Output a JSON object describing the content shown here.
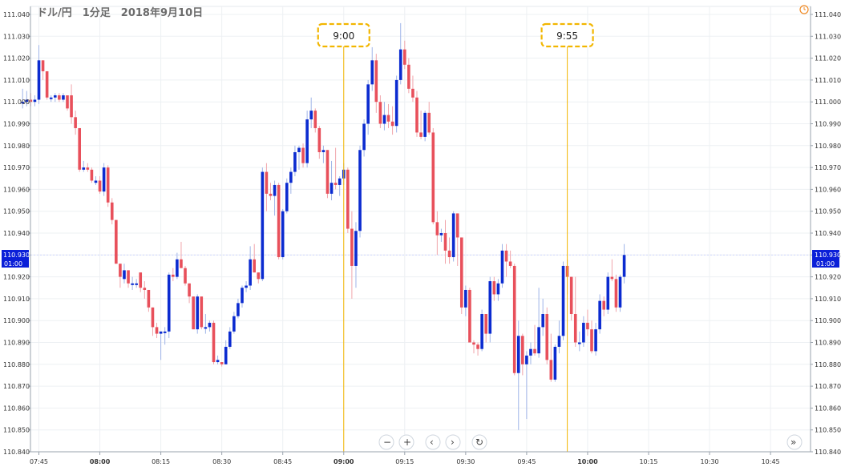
{
  "title": "ドル/円　1分足　2018年9月10日",
  "chart_data": {
    "type": "candlestick",
    "title": "ドル/円　1分足　2018年9月10日",
    "ylim": [
      110.84,
      111.04
    ],
    "y_ticks": [
      "111.040",
      "111.030",
      "111.020",
      "111.010",
      "111.000",
      "110.990",
      "110.980",
      "110.970",
      "110.960",
      "110.950",
      "110.940",
      "110.930",
      "110.920",
      "110.910",
      "110.900",
      "110.890",
      "110.880",
      "110.870",
      "110.860",
      "110.850",
      "110.840"
    ],
    "x_ticks": [
      {
        "label": "07:45",
        "minute": 465,
        "bold": false
      },
      {
        "label": "08:00",
        "minute": 480,
        "bold": true
      },
      {
        "label": "08:15",
        "minute": 495,
        "bold": false
      },
      {
        "label": "08:30",
        "minute": 510,
        "bold": false
      },
      {
        "label": "08:45",
        "minute": 525,
        "bold": false
      },
      {
        "label": "09:00",
        "minute": 540,
        "bold": true
      },
      {
        "label": "09:15",
        "minute": 555,
        "bold": false
      },
      {
        "label": "09:30",
        "minute": 570,
        "bold": false
      },
      {
        "label": "09:45",
        "minute": 585,
        "bold": false
      },
      {
        "label": "10:00",
        "minute": 600,
        "bold": true
      },
      {
        "label": "10:15",
        "minute": 615,
        "bold": false
      },
      {
        "label": "10:30",
        "minute": 630,
        "bold": false
      },
      {
        "label": "10:45",
        "minute": 645,
        "bold": false
      }
    ],
    "current_price": {
      "price": "110.930",
      "time": "01:00",
      "value": 110.93
    },
    "markers": [
      {
        "label": "9:00",
        "minute": 540
      },
      {
        "label": "9:55",
        "minute": 595
      }
    ],
    "up_color": "#0b2bd0",
    "down_color": "#e8505b",
    "marker_color": "#f2b600",
    "candles": [
      {
        "o": 111.0,
        "h": 111.006,
        "l": 110.997,
        "c": 111.0
      },
      {
        "o": 111.0,
        "h": 111.005,
        "l": 110.998,
        "c": 111.001
      },
      {
        "o": 111.001,
        "h": 111.004,
        "l": 110.998,
        "c": 111.0
      },
      {
        "o": 111.0,
        "h": 111.003,
        "l": 110.998,
        "c": 111.001
      },
      {
        "o": 111.001,
        "h": 111.026,
        "l": 110.999,
        "c": 111.019
      },
      {
        "o": 111.019,
        "h": 111.019,
        "l": 111.01,
        "c": 111.014
      },
      {
        "o": 111.014,
        "h": 111.014,
        "l": 111.001,
        "c": 111.002
      },
      {
        "o": 111.002,
        "h": 111.003,
        "l": 111.0,
        "c": 111.002
      },
      {
        "o": 111.002,
        "h": 111.004,
        "l": 111.0,
        "c": 111.003
      },
      {
        "o": 111.003,
        "h": 111.004,
        "l": 111.0,
        "c": 111.001
      },
      {
        "o": 111.001,
        "h": 111.004,
        "l": 111.0,
        "c": 111.003
      },
      {
        "o": 111.003,
        "h": 111.003,
        "l": 110.996,
        "c": 110.997
      },
      {
        "o": 111.003,
        "h": 111.008,
        "l": 110.99,
        "c": 110.993
      },
      {
        "o": 110.993,
        "h": 110.996,
        "l": 110.985,
        "c": 110.988
      },
      {
        "o": 110.988,
        "h": 110.988,
        "l": 110.968,
        "c": 110.969
      },
      {
        "o": 110.969,
        "h": 110.973,
        "l": 110.968,
        "c": 110.97
      },
      {
        "o": 110.97,
        "h": 110.972,
        "l": 110.968,
        "c": 110.969
      },
      {
        "o": 110.969,
        "h": 110.97,
        "l": 110.963,
        "c": 110.964
      },
      {
        "o": 110.963,
        "h": 110.966,
        "l": 110.962,
        "c": 110.964
      },
      {
        "o": 110.964,
        "h": 110.966,
        "l": 110.958,
        "c": 110.959
      },
      {
        "o": 110.959,
        "h": 110.972,
        "l": 110.957,
        "c": 110.97
      },
      {
        "o": 110.97,
        "h": 110.971,
        "l": 110.952,
        "c": 110.954
      },
      {
        "o": 110.954,
        "h": 110.956,
        "l": 110.944,
        "c": 110.946
      },
      {
        "o": 110.946,
        "h": 110.946,
        "l": 110.926,
        "c": 110.926
      },
      {
        "o": 110.926,
        "h": 110.926,
        "l": 110.915,
        "c": 110.92
      },
      {
        "o": 110.919,
        "h": 110.926,
        "l": 110.917,
        "c": 110.923
      },
      {
        "o": 110.923,
        "h": 110.923,
        "l": 110.915,
        "c": 110.917
      },
      {
        "o": 110.917,
        "h": 110.92,
        "l": 110.914,
        "c": 110.917
      },
      {
        "o": 110.917,
        "h": 110.919,
        "l": 110.915,
        "c": 110.917
      },
      {
        "o": 110.922,
        "h": 110.922,
        "l": 110.913,
        "c": 110.915
      },
      {
        "o": 110.915,
        "h": 110.918,
        "l": 110.91,
        "c": 110.914
      },
      {
        "o": 110.914,
        "h": 110.914,
        "l": 110.904,
        "c": 110.906
      },
      {
        "o": 110.906,
        "h": 110.906,
        "l": 110.893,
        "c": 110.897
      },
      {
        "o": 110.897,
        "h": 110.899,
        "l": 110.892,
        "c": 110.894
      },
      {
        "o": 110.894,
        "h": 110.895,
        "l": 110.882,
        "c": 110.895
      },
      {
        "o": 110.895,
        "h": 110.897,
        "l": 110.889,
        "c": 110.895
      },
      {
        "o": 110.895,
        "h": 110.922,
        "l": 110.892,
        "c": 110.921
      },
      {
        "o": 110.921,
        "h": 110.924,
        "l": 110.918,
        "c": 110.92
      },
      {
        "o": 110.92,
        "h": 110.931,
        "l": 110.919,
        "c": 110.928
      },
      {
        "o": 110.928,
        "h": 110.936,
        "l": 110.926,
        "c": 110.924
      },
      {
        "o": 110.924,
        "h": 110.925,
        "l": 110.916,
        "c": 110.917
      },
      {
        "o": 110.917,
        "h": 110.917,
        "l": 110.908,
        "c": 110.911
      },
      {
        "o": 110.911,
        "h": 110.911,
        "l": 110.896,
        "c": 110.896
      },
      {
        "o": 110.896,
        "h": 110.912,
        "l": 110.894,
        "c": 110.911
      },
      {
        "o": 110.911,
        "h": 110.911,
        "l": 110.896,
        "c": 110.897
      },
      {
        "o": 110.897,
        "h": 110.903,
        "l": 110.894,
        "c": 110.897
      },
      {
        "o": 110.897,
        "h": 110.9,
        "l": 110.895,
        "c": 110.899
      },
      {
        "o": 110.899,
        "h": 110.9,
        "l": 110.88,
        "c": 110.881
      },
      {
        "o": 110.881,
        "h": 110.884,
        "l": 110.88,
        "c": 110.882
      },
      {
        "o": 110.881,
        "h": 110.881,
        "l": 110.879,
        "c": 110.88
      },
      {
        "o": 110.88,
        "h": 110.891,
        "l": 110.88,
        "c": 110.888
      },
      {
        "o": 110.888,
        "h": 110.897,
        "l": 110.887,
        "c": 110.895
      },
      {
        "o": 110.895,
        "h": 110.904,
        "l": 110.894,
        "c": 110.902
      },
      {
        "o": 110.902,
        "h": 110.91,
        "l": 110.901,
        "c": 110.908
      },
      {
        "o": 110.908,
        "h": 110.916,
        "l": 110.906,
        "c": 110.915
      },
      {
        "o": 110.915,
        "h": 110.918,
        "l": 110.913,
        "c": 110.916
      },
      {
        "o": 110.916,
        "h": 110.934,
        "l": 110.914,
        "c": 110.928
      },
      {
        "o": 110.928,
        "h": 110.935,
        "l": 110.922,
        "c": 110.922
      },
      {
        "o": 110.922,
        "h": 110.922,
        "l": 110.917,
        "c": 110.919
      },
      {
        "o": 110.919,
        "h": 110.97,
        "l": 110.918,
        "c": 110.968
      },
      {
        "o": 110.968,
        "h": 110.972,
        "l": 110.95,
        "c": 110.958
      },
      {
        "o": 110.958,
        "h": 110.963,
        "l": 110.955,
        "c": 110.957
      },
      {
        "o": 110.957,
        "h": 110.964,
        "l": 110.948,
        "c": 110.962
      },
      {
        "o": 110.962,
        "h": 110.963,
        "l": 110.928,
        "c": 110.929
      },
      {
        "o": 110.929,
        "h": 110.951,
        "l": 110.928,
        "c": 110.95
      },
      {
        "o": 110.95,
        "h": 110.965,
        "l": 110.949,
        "c": 110.963
      },
      {
        "o": 110.963,
        "h": 110.97,
        "l": 110.958,
        "c": 110.968
      },
      {
        "o": 110.968,
        "h": 110.98,
        "l": 110.966,
        "c": 110.977
      },
      {
        "o": 110.977,
        "h": 110.98,
        "l": 110.969,
        "c": 110.979
      },
      {
        "o": 110.979,
        "h": 110.981,
        "l": 110.97,
        "c": 110.972
      },
      {
        "o": 110.972,
        "h": 110.996,
        "l": 110.97,
        "c": 110.992
      },
      {
        "o": 110.992,
        "h": 111.002,
        "l": 110.988,
        "c": 110.996
      },
      {
        "o": 110.996,
        "h": 110.997,
        "l": 110.986,
        "c": 110.988
      },
      {
        "o": 110.988,
        "h": 110.989,
        "l": 110.974,
        "c": 110.977
      },
      {
        "o": 110.977,
        "h": 110.98,
        "l": 110.972,
        "c": 110.978
      },
      {
        "o": 110.978,
        "h": 110.978,
        "l": 110.956,
        "c": 110.958
      },
      {
        "o": 110.958,
        "h": 110.973,
        "l": 110.955,
        "c": 110.963
      },
      {
        "o": 110.963,
        "h": 110.979,
        "l": 110.96,
        "c": 110.962
      },
      {
        "o": 110.962,
        "h": 110.966,
        "l": 110.957,
        "c": 110.965
      },
      {
        "o": 110.965,
        "h": 110.972,
        "l": 110.962,
        "c": 110.969
      },
      {
        "o": 110.969,
        "h": 110.97,
        "l": 110.94,
        "c": 110.942
      },
      {
        "o": 110.942,
        "h": 110.95,
        "l": 110.91,
        "c": 110.925
      },
      {
        "o": 110.925,
        "h": 110.945,
        "l": 110.915,
        "c": 110.941
      },
      {
        "o": 110.941,
        "h": 110.98,
        "l": 110.938,
        "c": 110.978
      },
      {
        "o": 110.978,
        "h": 110.992,
        "l": 110.975,
        "c": 110.99
      },
      {
        "o": 110.99,
        "h": 111.01,
        "l": 110.985,
        "c": 111.008
      },
      {
        "o": 111.008,
        "h": 111.025,
        "l": 111.005,
        "c": 111.019
      },
      {
        "o": 111.019,
        "h": 111.022,
        "l": 110.995,
        "c": 111.0
      },
      {
        "o": 111.0,
        "h": 111.003,
        "l": 110.988,
        "c": 110.99
      },
      {
        "o": 110.99,
        "h": 111.0,
        "l": 110.987,
        "c": 110.994
      },
      {
        "o": 110.994,
        "h": 110.999,
        "l": 110.988,
        "c": 110.991
      },
      {
        "o": 110.991,
        "h": 110.998,
        "l": 110.985,
        "c": 110.989
      },
      {
        "o": 110.989,
        "h": 111.012,
        "l": 110.986,
        "c": 111.01
      },
      {
        "o": 111.01,
        "h": 111.036,
        "l": 111.008,
        "c": 111.024
      },
      {
        "o": 111.024,
        "h": 111.028,
        "l": 111.015,
        "c": 111.017
      },
      {
        "o": 111.017,
        "h": 111.02,
        "l": 111.004,
        "c": 111.006
      },
      {
        "o": 111.006,
        "h": 111.012,
        "l": 111.0,
        "c": 111.002
      },
      {
        "o": 111.002,
        "h": 111.005,
        "l": 110.984,
        "c": 110.986
      },
      {
        "o": 110.986,
        "h": 110.996,
        "l": 110.983,
        "c": 110.984
      },
      {
        "o": 110.984,
        "h": 110.996,
        "l": 110.982,
        "c": 110.995
      },
      {
        "o": 110.995,
        "h": 111.0,
        "l": 110.985,
        "c": 110.986
      },
      {
        "o": 110.986,
        "h": 110.988,
        "l": 110.944,
        "c": 110.945
      },
      {
        "o": 110.945,
        "h": 110.95,
        "l": 110.93,
        "c": 110.939
      },
      {
        "o": 110.939,
        "h": 110.942,
        "l": 110.936,
        "c": 110.94
      },
      {
        "o": 110.94,
        "h": 110.946,
        "l": 110.926,
        "c": 110.932
      },
      {
        "o": 110.932,
        "h": 110.938,
        "l": 110.926,
        "c": 110.929
      },
      {
        "o": 110.929,
        "h": 110.95,
        "l": 110.927,
        "c": 110.949
      },
      {
        "o": 110.949,
        "h": 110.949,
        "l": 110.925,
        "c": 110.938
      },
      {
        "o": 110.938,
        "h": 110.938,
        "l": 110.903,
        "c": 110.906
      },
      {
        "o": 110.906,
        "h": 110.916,
        "l": 110.902,
        "c": 110.914
      },
      {
        "o": 110.914,
        "h": 110.915,
        "l": 110.89,
        "c": 110.89
      },
      {
        "o": 110.89,
        "h": 110.891,
        "l": 110.885,
        "c": 110.889
      },
      {
        "o": 110.889,
        "h": 110.89,
        "l": 110.884,
        "c": 110.887
      },
      {
        "o": 110.887,
        "h": 110.905,
        "l": 110.886,
        "c": 110.903
      },
      {
        "o": 110.903,
        "h": 110.903,
        "l": 110.89,
        "c": 110.894
      },
      {
        "o": 110.894,
        "h": 110.92,
        "l": 110.89,
        "c": 110.918
      },
      {
        "o": 110.918,
        "h": 110.92,
        "l": 110.909,
        "c": 110.912
      },
      {
        "o": 110.912,
        "h": 110.919,
        "l": 110.909,
        "c": 110.917
      },
      {
        "o": 110.917,
        "h": 110.935,
        "l": 110.915,
        "c": 110.932
      },
      {
        "o": 110.932,
        "h": 110.935,
        "l": 110.92,
        "c": 110.927
      },
      {
        "o": 110.927,
        "h": 110.932,
        "l": 110.924,
        "c": 110.925
      },
      {
        "o": 110.925,
        "h": 110.926,
        "l": 110.875,
        "c": 110.876
      },
      {
        "o": 110.876,
        "h": 110.9,
        "l": 110.85,
        "c": 110.893
      },
      {
        "o": 110.893,
        "h": 110.894,
        "l": 110.875,
        "c": 110.88
      },
      {
        "o": 110.88,
        "h": 110.886,
        "l": 110.855,
        "c": 110.884
      },
      {
        "o": 110.884,
        "h": 110.89,
        "l": 110.88,
        "c": 110.887
      },
      {
        "o": 110.887,
        "h": 110.898,
        "l": 110.884,
        "c": 110.885
      },
      {
        "o": 110.885,
        "h": 110.915,
        "l": 110.883,
        "c": 110.897
      },
      {
        "o": 110.897,
        "h": 110.91,
        "l": 110.893,
        "c": 110.903
      },
      {
        "o": 110.903,
        "h": 110.906,
        "l": 110.88,
        "c": 110.882
      },
      {
        "o": 110.882,
        "h": 110.894,
        "l": 110.872,
        "c": 110.873
      },
      {
        "o": 110.873,
        "h": 110.889,
        "l": 110.872,
        "c": 110.888
      },
      {
        "o": 110.888,
        "h": 110.9,
        "l": 110.885,
        "c": 110.893
      },
      {
        "o": 110.893,
        "h": 110.927,
        "l": 110.891,
        "c": 110.925
      },
      {
        "o": 110.925,
        "h": 110.928,
        "l": 110.912,
        "c": 110.92
      },
      {
        "o": 110.92,
        "h": 110.92,
        "l": 110.9,
        "c": 110.903
      },
      {
        "o": 110.903,
        "h": 110.92,
        "l": 110.888,
        "c": 110.89
      },
      {
        "o": 110.89,
        "h": 110.895,
        "l": 110.886,
        "c": 110.89
      },
      {
        "o": 110.89,
        "h": 110.902,
        "l": 110.888,
        "c": 110.899
      },
      {
        "o": 110.899,
        "h": 110.905,
        "l": 110.893,
        "c": 110.896
      },
      {
        "o": 110.896,
        "h": 110.9,
        "l": 110.885,
        "c": 110.886
      },
      {
        "o": 110.886,
        "h": 110.899,
        "l": 110.884,
        "c": 110.896
      },
      {
        "o": 110.896,
        "h": 110.912,
        "l": 110.894,
        "c": 110.909
      },
      {
        "o": 110.909,
        "h": 110.911,
        "l": 110.902,
        "c": 110.905
      },
      {
        "o": 110.905,
        "h": 110.922,
        "l": 110.903,
        "c": 110.92
      },
      {
        "o": 110.92,
        "h": 110.928,
        "l": 110.918,
        "c": 110.919
      },
      {
        "o": 110.919,
        "h": 110.921,
        "l": 110.904,
        "c": 110.906
      },
      {
        "o": 110.906,
        "h": 110.921,
        "l": 110.904,
        "c": 110.92
      },
      {
        "o": 110.92,
        "h": 110.935,
        "l": 110.917,
        "c": 110.93
      }
    ]
  },
  "controls": {
    "zoom_out": "−",
    "zoom_in": "+",
    "prev": "‹",
    "next": "›",
    "reset": "↻",
    "jump_end": "»"
  }
}
